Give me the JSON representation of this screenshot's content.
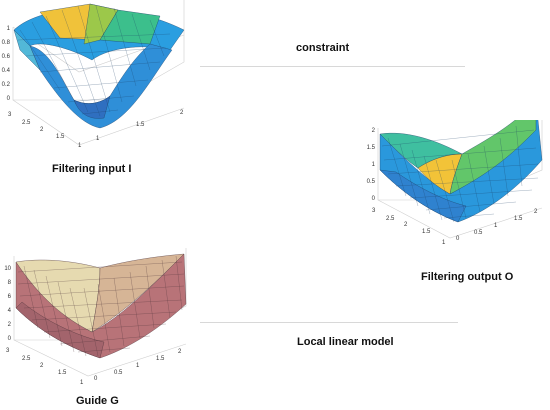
{
  "connectors": {
    "top_label": "constraint",
    "bottom_label": "Local linear model"
  },
  "plots": {
    "input": {
      "caption": "Filtering input I",
      "z_ticks": [
        "1",
        "0.8",
        "0.6",
        "0.4",
        "0.2",
        "0"
      ],
      "y_ticks": [
        "3",
        "2.5",
        "2",
        "1.5",
        "1"
      ],
      "x_ticks": [
        "1",
        "1.5",
        "2"
      ]
    },
    "output": {
      "caption": "Filtering output O",
      "z_ticks": [
        "2",
        "1.5",
        "1",
        "0.5",
        "0"
      ],
      "y_ticks": [
        "3",
        "2.5",
        "2",
        "1.5",
        "1"
      ],
      "x_ticks": [
        "0",
        "0.5",
        "1",
        "1.5",
        "2"
      ]
    },
    "guide": {
      "caption": "Guide G",
      "z_ticks": [
        "10",
        "8",
        "6",
        "4",
        "2",
        "0"
      ],
      "y_ticks": [
        "3",
        "2.5",
        "2",
        "1.5",
        "1"
      ],
      "x_ticks": [
        "0",
        "0.5",
        "1",
        "1.5",
        "2"
      ]
    }
  },
  "colors": {
    "parula_low": "#2b9be0",
    "parula_mid": "#3fbfa0",
    "parula_high": "#f2c338",
    "pink_low": "#b57378",
    "pink_high": "#eee7bf",
    "axis": "#555555"
  }
}
